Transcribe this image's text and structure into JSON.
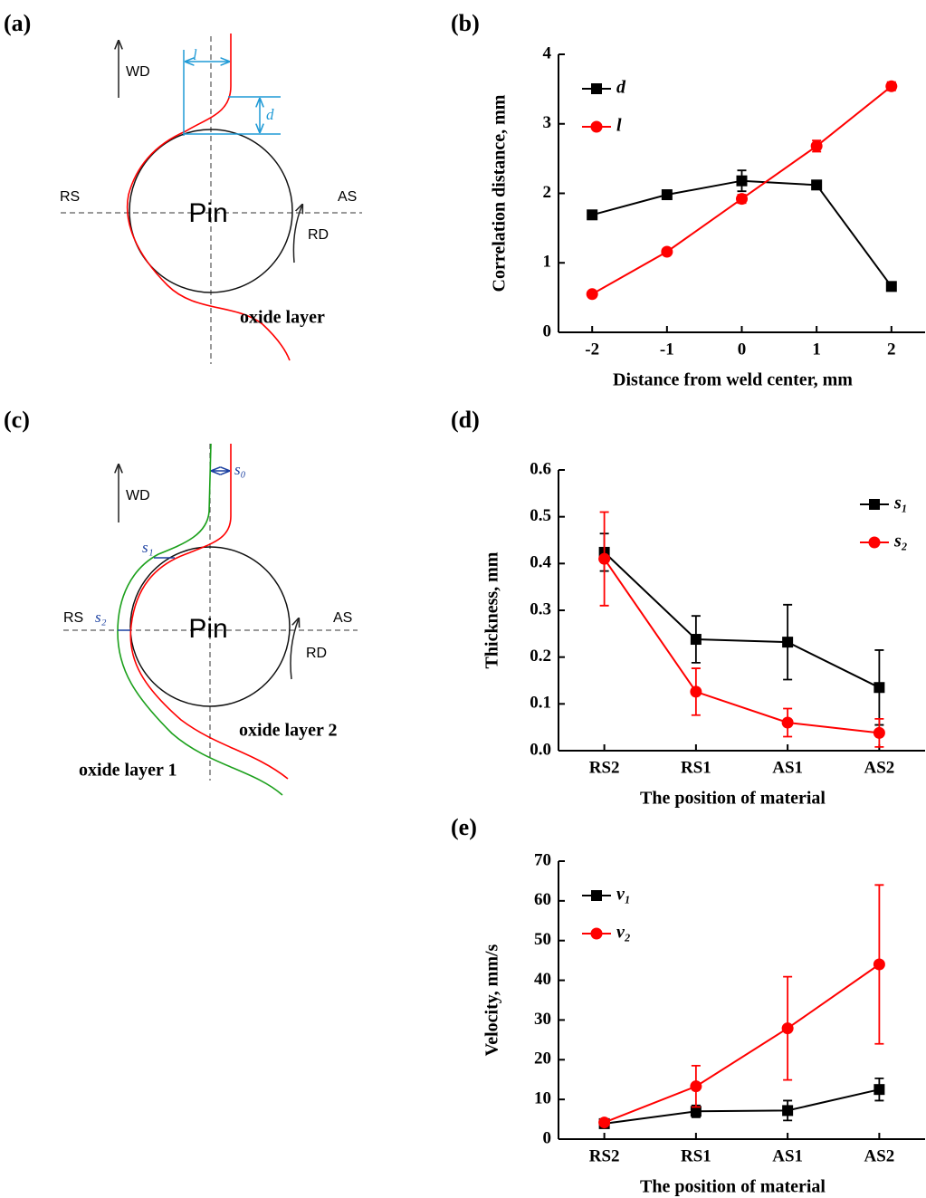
{
  "panel_labels": [
    "(a)",
    "(b)",
    "(c)",
    "(d)",
    "(e)"
  ],
  "diagram_a": {
    "wd": "WD",
    "rs": "RS",
    "as": "AS",
    "pin": "Pin",
    "rd": "RD",
    "l": "l",
    "d": "d",
    "oxide": "oxide layer"
  },
  "diagram_c": {
    "wd": "WD",
    "rs": "RS",
    "as": "AS",
    "pin": "Pin",
    "rd": "RD",
    "s0": "s₀",
    "s1": "s₁",
    "s2": "s₂",
    "oxide2": "oxide layer 2",
    "oxide1": "oxide layer 1"
  },
  "chart_data": [
    {
      "type": "line",
      "x_label": "Distance from weld center, mm",
      "y_label": "Correlation distance, mm",
      "x": [
        -2,
        -1,
        0,
        1,
        2
      ],
      "xlim": [
        -2.45,
        2.45
      ],
      "xticks": [
        -2,
        -1,
        0,
        1,
        2
      ],
      "ylim": [
        0,
        4
      ],
      "yticks": [
        0,
        1,
        2,
        3,
        4
      ],
      "legend": "upper left",
      "series": [
        {
          "name": "d",
          "color": "#000000",
          "marker": "square",
          "values": [
            1.69,
            1.98,
            2.18,
            2.12,
            0.66
          ],
          "errors": [
            0.06,
            0.05,
            0.15,
            0.04,
            0.06
          ]
        },
        {
          "name": "l",
          "color": "#ff0000",
          "marker": "circle",
          "values": [
            0.55,
            1.16,
            1.92,
            2.68,
            3.54
          ],
          "errors": [
            0.03,
            0.04,
            0.06,
            0.08,
            0.06
          ]
        }
      ]
    },
    {
      "type": "line",
      "x_label": "The position of material",
      "y_label": "Thickness, mm",
      "categories": [
        "RS2",
        "RS1",
        "AS1",
        "AS2"
      ],
      "ylim": [
        0,
        0.6
      ],
      "yticks": [
        {
          "value": 0,
          "label": "0.0"
        },
        0.1,
        0.2,
        0.3,
        0.4,
        0.5,
        0.6
      ],
      "legend": "upper right",
      "series": [
        {
          "name": "s₁",
          "color": "#000000",
          "marker": "square",
          "values": [
            0.424,
            0.238,
            0.232,
            0.135
          ],
          "errors": [
            0.04,
            0.05,
            0.08,
            0.08
          ]
        },
        {
          "name": "s₂",
          "color": "#ff0000",
          "marker": "circle",
          "values": [
            0.41,
            0.126,
            0.06,
            0.038
          ],
          "errors": [
            0.1,
            0.05,
            0.03,
            0.03
          ]
        }
      ]
    },
    {
      "type": "line",
      "x_label": "The position of material",
      "y_label": "Velocity, mm/s",
      "categories": [
        "RS2",
        "RS1",
        "AS1",
        "AS2"
      ],
      "ylim": [
        0,
        70
      ],
      "yticks": [
        0,
        10,
        20,
        30,
        40,
        50,
        60,
        70
      ],
      "legend": "upper left",
      "series": [
        {
          "name": "v₁",
          "color": "#000000",
          "marker": "square",
          "values": [
            3.9,
            7,
            7.2,
            12.5
          ],
          "errors": [
            0.5,
            1.5,
            2.5,
            2.8
          ]
        },
        {
          "name": "v₂",
          "color": "#ff0000",
          "marker": "circle",
          "values": [
            4.2,
            13.3,
            27.9,
            44
          ],
          "errors": [
            0.5,
            5.2,
            13,
            20
          ]
        }
      ]
    }
  ]
}
